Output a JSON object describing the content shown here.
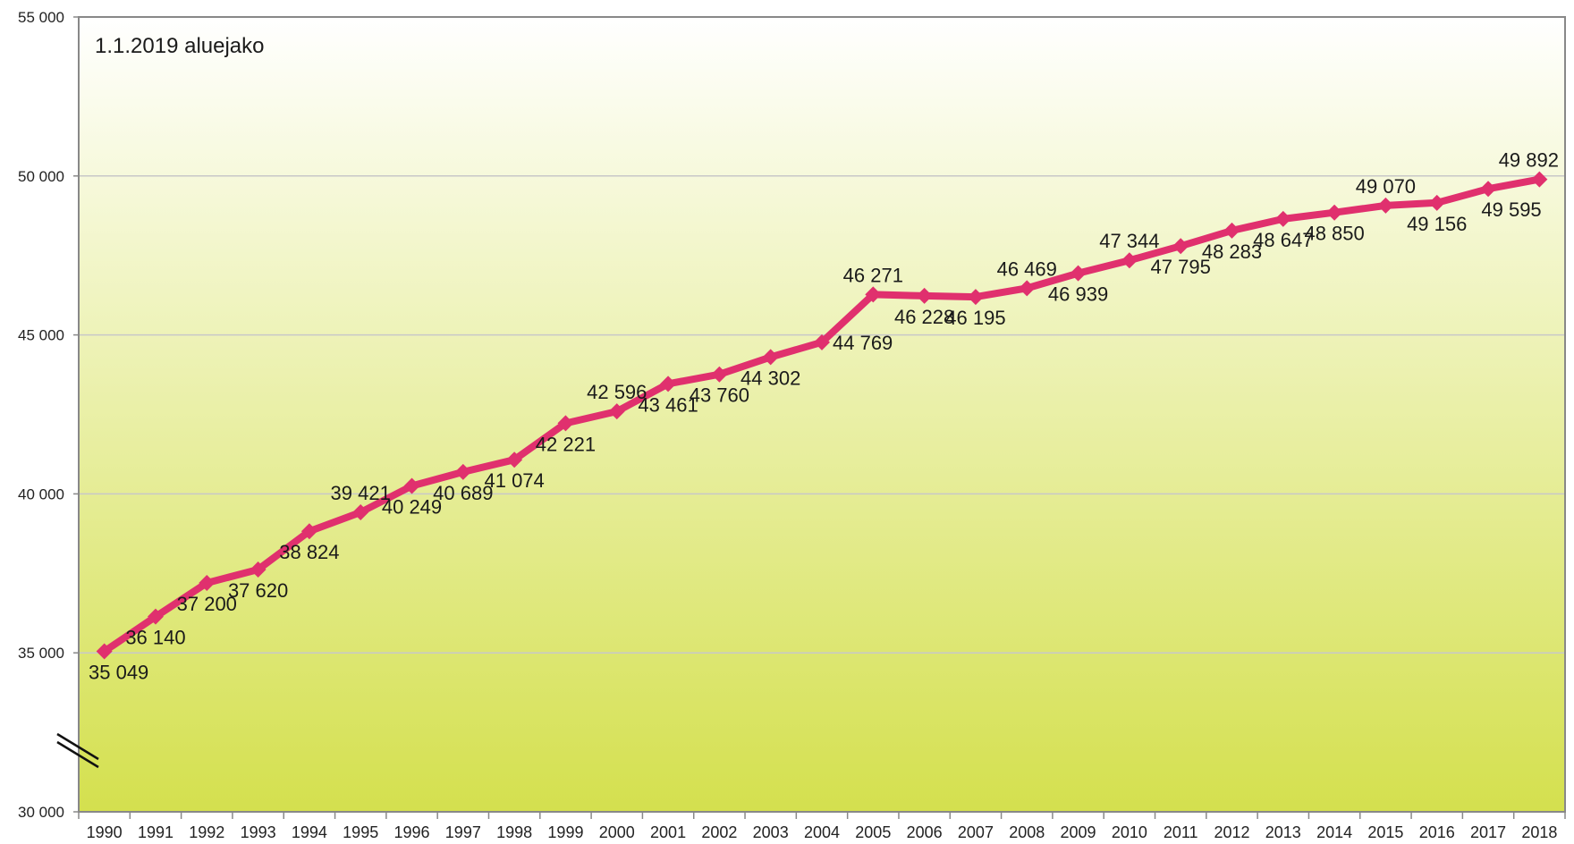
{
  "chart_data": {
    "type": "line",
    "note": "1.1.2019 aluejako",
    "x": [
      "1990",
      "1991",
      "1992",
      "1993",
      "1994",
      "1995",
      "1996",
      "1997",
      "1998",
      "1999",
      "2000",
      "2001",
      "2002",
      "2003",
      "2004",
      "2005",
      "2006",
      "2007",
      "2008",
      "2009",
      "2010",
      "2011",
      "2012",
      "2013",
      "2014",
      "2015",
      "2016",
      "2017",
      "2018"
    ],
    "series": [
      {
        "values": [
          35049,
          36140,
          37200,
          37620,
          38824,
          39421,
          40249,
          40689,
          41074,
          42221,
          42596,
          43461,
          43760,
          44302,
          44769,
          46271,
          46228,
          46195,
          46469,
          46939,
          47344,
          47795,
          48283,
          48647,
          48850,
          49070,
          49156,
          49595,
          49892
        ],
        "labels": [
          "35 049",
          "36 140",
          "37 200",
          "37 620",
          "38 824",
          "39 421",
          "40 249",
          "40 689",
          "41 074",
          "42 221",
          "42 596",
          "43 461",
          "43 760",
          "44 302",
          "44 769",
          "46 271",
          "46 228",
          "46 195",
          "46 469",
          "46 939",
          "47 344",
          "47 795",
          "48 283",
          "48 647",
          "48 850",
          "49 070",
          "49 156",
          "49 595",
          "49 892"
        ],
        "label_positions": [
          "below",
          "below",
          "below",
          "below",
          "below",
          "above",
          "below",
          "below",
          "below",
          "below",
          "above",
          "below",
          "below",
          "below",
          "right",
          "above",
          "below",
          "below",
          "above",
          "below",
          "above",
          "below",
          "below",
          "below",
          "below",
          "above",
          "below",
          "below",
          "above"
        ],
        "color": "#e0306e"
      }
    ],
    "y_ticks": [
      {
        "value": 30000,
        "label": "30 000"
      },
      {
        "value": 35000,
        "label": "35 000"
      },
      {
        "value": 40000,
        "label": "40 000"
      },
      {
        "value": 45000,
        "label": "45 000"
      },
      {
        "value": 50000,
        "label": "50 000"
      },
      {
        "value": 55000,
        "label": "55 000"
      }
    ],
    "ylim": [
      30000,
      55000
    ],
    "axis_break": true,
    "grid": true,
    "legend": "none",
    "background_gradient": [
      "#ffffff",
      "#d4e04e"
    ],
    "grid_color": "#c8c8c8",
    "border_color": "#888888"
  }
}
